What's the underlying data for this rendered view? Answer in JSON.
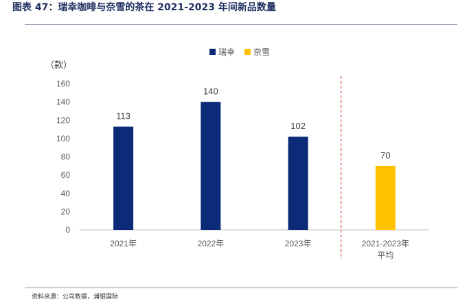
{
  "header": {
    "title": "图表 47：瑞幸咖啡与奈雪的茶在 2021-2023 年间新品数量"
  },
  "footer": {
    "source": "资料来源：公司数据，浦银国际"
  },
  "colors": {
    "luckin": "#0b2a78",
    "nayuki": "#ffc000",
    "divider": "#c0392b",
    "axis": "#bfbfbf",
    "rule": "#8a8fa8"
  },
  "chart_data": {
    "type": "bar",
    "unit_label": "（款）",
    "ylim": [
      0,
      160
    ],
    "yticks": [
      0,
      20,
      40,
      60,
      80,
      100,
      120,
      140,
      160
    ],
    "grid": false,
    "legend_position": "top-center",
    "categories": [
      "2021年",
      "2022年",
      "2023年",
      "2021-2023年\n平均"
    ],
    "series": [
      {
        "name": "瑞幸",
        "color": "#0b2a78",
        "values": [
          113,
          140,
          102,
          null
        ]
      },
      {
        "name": "奈雪",
        "color": "#ffc000",
        "values": [
          null,
          null,
          null,
          70
        ]
      }
    ]
  }
}
